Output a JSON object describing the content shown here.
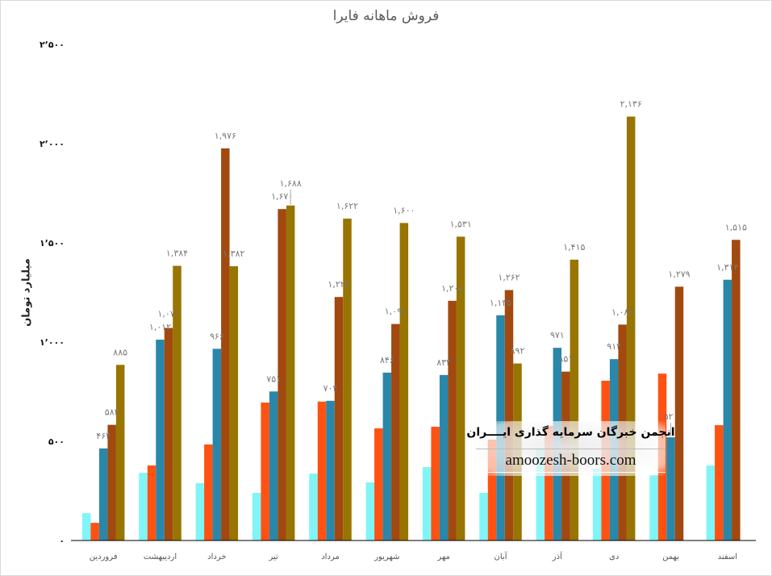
{
  "chart_data": {
    "type": "bar",
    "title": "فروش ماهانه فایرا",
    "xlabel": "",
    "ylabel": "میلیارد تومان",
    "ylim": [
      0,
      2500
    ],
    "yticks": [
      0,
      500,
      1000,
      1500,
      2000,
      2500
    ],
    "ytick_labels": [
      "۰",
      "۵۰۰",
      "۱٬۰۰۰",
      "۱٬۵۰۰",
      "۲٬۰۰۰",
      "۲٬۵۰۰"
    ],
    "grid": false,
    "legend": "none",
    "categories": [
      "فروردین",
      "اردیبهشت",
      "خرداد",
      "تیر",
      "مرداد",
      "شهریور",
      "مهر",
      "آبان",
      "آذر",
      "دی",
      "بهمن",
      "اسفند"
    ],
    "series": [
      {
        "name": "series-1",
        "color": "#80f5f7",
        "labeled": false,
        "values": [
          138,
          341,
          289,
          240,
          337,
          293,
          370,
          240,
          459,
          362,
          329,
          378
        ]
      },
      {
        "name": "series-2",
        "color": "#ff5212",
        "labeled": false,
        "values": [
          89,
          378,
          484,
          695,
          700,
          565,
          573,
          508,
          577,
          805,
          841,
          581
        ]
      },
      {
        "name": "series-3",
        "color": "#2987a9",
        "labeled": true,
        "values": [
          464,
          1012,
          966,
          751,
          704,
          846,
          834,
          1135,
          971,
          914,
          520,
          1314
        ]
      },
      {
        "name": "series-4",
        "color": "#a1490f",
        "labeled": true,
        "values": [
          583,
          1071,
          1976,
          1670,
          1227,
          1091,
          1208,
          1262,
          851,
          1088,
          1279,
          1515
        ]
      },
      {
        "name": "series-5",
        "color": "#987400",
        "labeled": true,
        "values": [
          885,
          1384,
          1382,
          1688,
          1622,
          1600,
          1531,
          892,
          1415,
          2136,
          null,
          null
        ]
      }
    ]
  },
  "watermark": {
    "name": "انجمن خبرگان سرمایه گذاری ایــــران",
    "site": "amoozesh-boors.com"
  }
}
